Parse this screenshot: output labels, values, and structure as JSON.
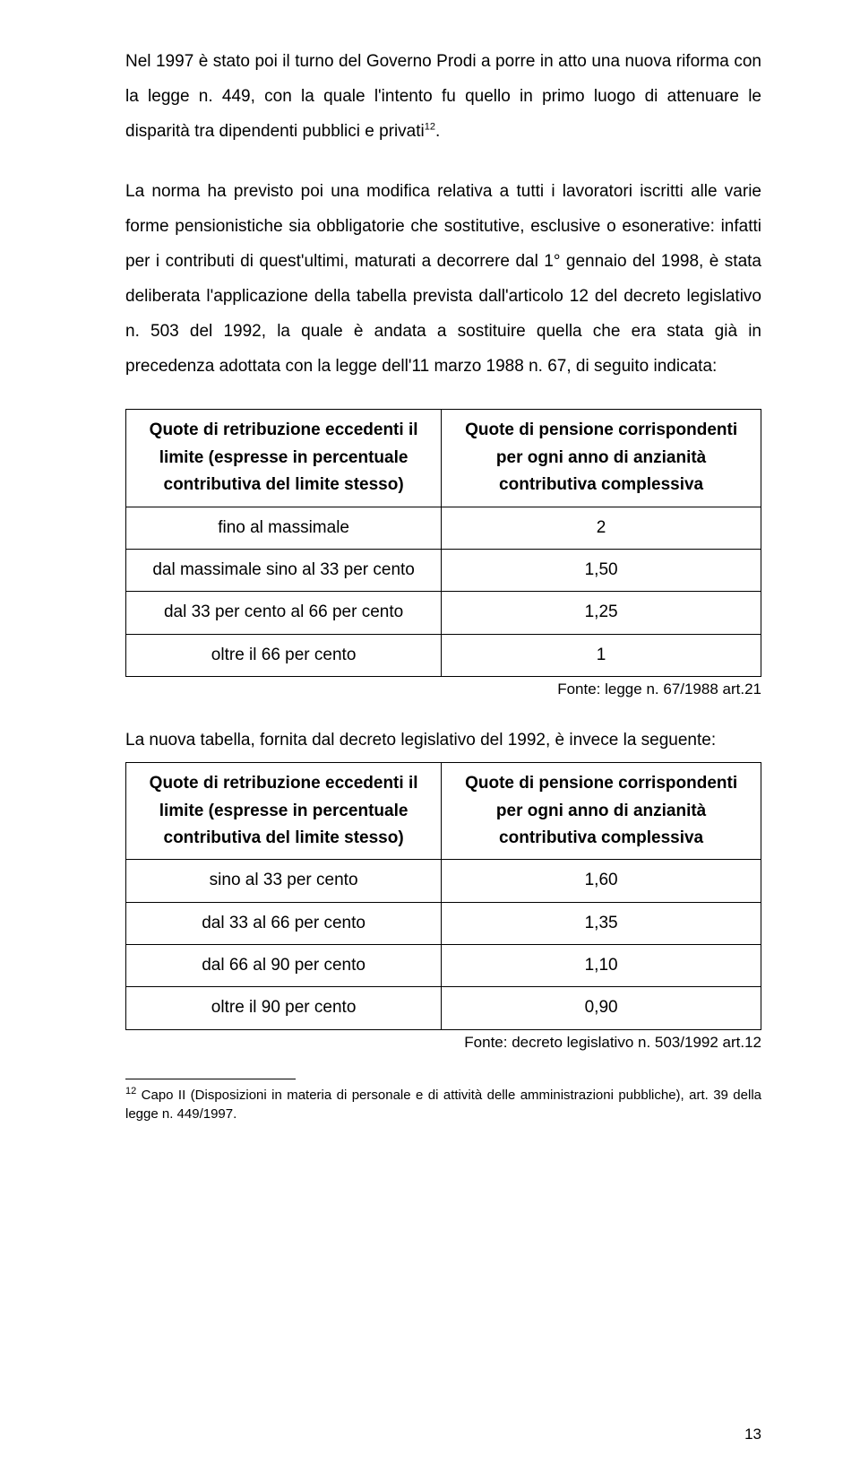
{
  "para1": "Nel 1997 è stato poi il turno del Governo Prodi a porre in atto una nuova riforma con la legge n. 449, con la quale l'intento fu quello in primo luogo di attenuare le disparità tra dipendenti pubblici e privati",
  "sup1": "12",
  "para1b": ".",
  "para2": "La norma ha previsto poi una modifica relativa a tutti i lavoratori iscritti alle varie forme pensionistiche sia obbligatorie che sostitutive, esclusive o esonerative: infatti per i contributi di quest'ultimi, maturati a decorrere dal 1° gennaio del 1998, è stata deliberata l'applicazione della tabella prevista dall'articolo 12 del decreto legislativo n. 503 del 1992, la quale è andata a sostituire quella che era stata già in precedenza adottata con la legge dell'11 marzo 1988 n. 67, di seguito indicata:",
  "table1": {
    "h1a": "Quote di retribuzione eccedenti il",
    "h1b": "limite (espresse in percentuale",
    "h1c": "contributiva del limite stesso)",
    "h2a": "Quote di pensione corrispondenti",
    "h2b": "per ogni anno di anzianità",
    "h2c": "contributiva complessiva",
    "rows": [
      {
        "l": "fino al massimale",
        "r": "2"
      },
      {
        "l": "dal massimale sino al 33 per cento",
        "r": "1,50"
      },
      {
        "l": "dal 33 per cento al 66 per cento",
        "r": "1,25"
      },
      {
        "l": "oltre il 66 per cento",
        "r": "1"
      }
    ]
  },
  "source1": "Fonte: legge n. 67/1988 art.21",
  "between": "La nuova tabella, fornita dal decreto legislativo del 1992, è invece la seguente:",
  "table2": {
    "h1a": "Quote di retribuzione eccedenti il",
    "h1b": "limite (espresse in percentuale",
    "h1c": "contributiva del limite stesso)",
    "h2a": "Quote di pensione corrispondenti",
    "h2b": "per ogni anno di anzianità",
    "h2c": "contributiva complessiva",
    "rows": [
      {
        "l": "sino al 33 per cento",
        "r": "1,60"
      },
      {
        "l": "dal 33 al 66 per cento",
        "r": "1,35"
      },
      {
        "l": "dal 66 al 90 per cento",
        "r": "1,10"
      },
      {
        "l": "oltre il 90 per cento",
        "r": "0,90"
      }
    ]
  },
  "source2": "Fonte: decreto legislativo n. 503/1992 art.12",
  "footnote_num": "12",
  "footnote_text": " Capo II (Disposizioni in materia di personale e di attività delle amministrazioni pubbliche), art. 39 della legge n. 449/1997.",
  "page_num": "13"
}
